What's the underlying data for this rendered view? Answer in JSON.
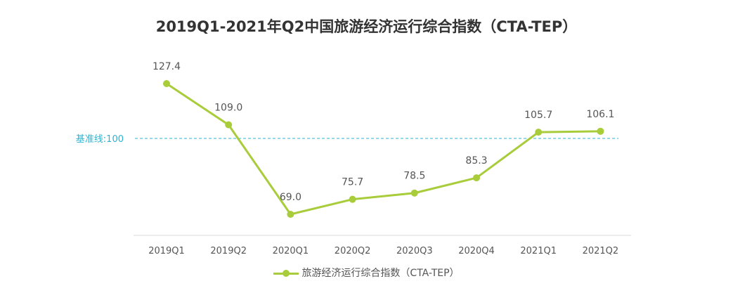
{
  "chart_data": {
    "type": "line",
    "title": "2019Q1-2021年Q2中国旅游经济运行综合指数（CTA-TEP）",
    "categories": [
      "2019Q1",
      "2019Q2",
      "2020Q1",
      "2020Q2",
      "2020Q3",
      "2020Q4",
      "2021Q1",
      "2021Q2"
    ],
    "series": [
      {
        "name": "旅游经济运行综合指数（CTA-TEP）",
        "values": [
          127.4,
          109.0,
          69.0,
          75.7,
          78.5,
          85.3,
          105.7,
          106.1
        ],
        "labels": [
          "127.4",
          "109.0",
          "69.0",
          "75.7",
          "78.5",
          "85.3",
          "105.7",
          "106.1"
        ]
      }
    ],
    "reference_line": {
      "label": "基准线:100",
      "value": 100
    },
    "xlabel": "",
    "ylabel": "",
    "grid": false,
    "legend": "bottom",
    "colors": {
      "series": "#a8cc3a",
      "reference": "#29b6d6"
    }
  }
}
